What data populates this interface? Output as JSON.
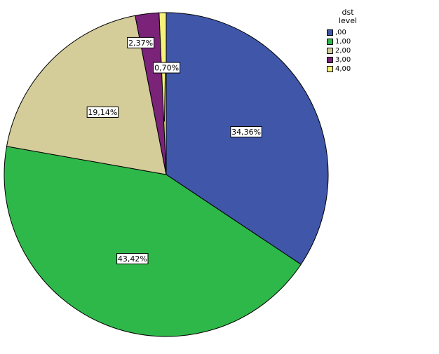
{
  "chart_data": {
    "type": "pie",
    "title": "",
    "legend_title": [
      "dst",
      "level"
    ],
    "legend_position": "top-right",
    "slices": [
      {
        "label": ",00",
        "value": 34.36,
        "display": "34,36%",
        "color": "#3f56a9"
      },
      {
        "label": "1,00",
        "value": 43.42,
        "display": "43,42%",
        "color": "#2fb84a"
      },
      {
        "label": "2,00",
        "value": 19.14,
        "display": "19,14%",
        "color": "#d4cd9a"
      },
      {
        "label": "3,00",
        "value": 2.37,
        "display": "2,37%",
        "color": "#7a2378"
      },
      {
        "label": "4,00",
        "value": 0.7,
        "display": "0,70%",
        "color": "#f6f279"
      }
    ]
  }
}
